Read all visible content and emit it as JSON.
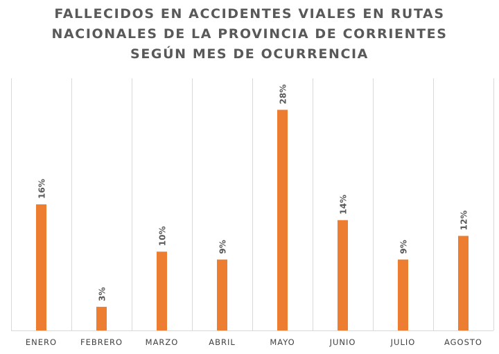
{
  "chart_data": {
    "type": "bar",
    "title_lines": [
      "FALLECIDOS EN ACCIDENTES VIALES EN RUTAS",
      "NACIONALES DE LA PROVINCIA DE CORRIENTES",
      "SEGÚN MES DE OCURRENCIA"
    ],
    "categories": [
      "ENERO",
      "FEBRERO",
      "MARZO",
      "ABRIL",
      "MAYO",
      "JUNIO",
      "JULIO",
      "AGOSTO"
    ],
    "values": [
      16,
      3,
      10,
      9,
      28,
      14,
      9,
      12
    ],
    "data_labels": [
      "16%",
      "3%",
      "10%",
      "9%",
      "28%",
      "14%",
      "9%",
      "12%"
    ],
    "value_unit": "%",
    "ylim": [
      0,
      32
    ],
    "vertical_gridlines": true,
    "bar_color": "#ED7D31",
    "text_color": "#595959",
    "grid_color": "#D9D9D9"
  }
}
